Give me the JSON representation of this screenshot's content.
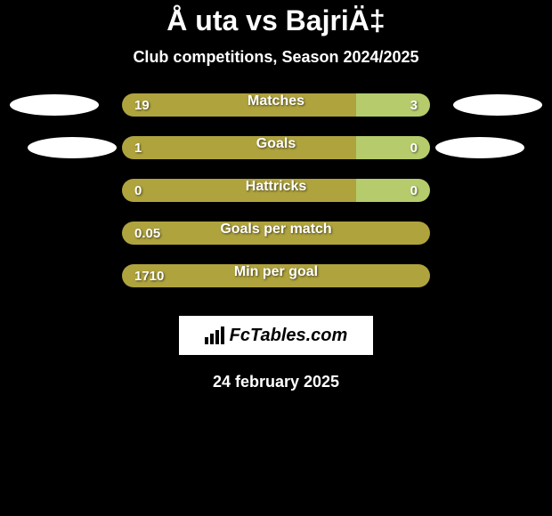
{
  "header": {
    "title": "Å uta vs BajriÄ‡",
    "subtitle": "Club competitions, Season 2024/2025"
  },
  "rows": [
    {
      "label": "Matches",
      "left_value": "19",
      "right_value": "3",
      "left_width_pct": 76,
      "right_width_pct": 24,
      "left_color": "#afa33e",
      "right_color": "#b6cc6c",
      "show_ellipses": true,
      "ellipse_indent": false
    },
    {
      "label": "Goals",
      "left_value": "1",
      "right_value": "0",
      "left_width_pct": 76,
      "right_width_pct": 24,
      "left_color": "#afa33e",
      "right_color": "#b6cc6c",
      "show_ellipses": true,
      "ellipse_indent": true
    },
    {
      "label": "Hattricks",
      "left_value": "0",
      "right_value": "0",
      "left_width_pct": 76,
      "right_width_pct": 24,
      "left_color": "#afa33e",
      "right_color": "#b6cc6c",
      "show_ellipses": false,
      "ellipse_indent": false
    },
    {
      "label": "Goals per match",
      "left_value": "0.05",
      "right_value": "",
      "left_width_pct": 100,
      "right_width_pct": 0,
      "left_color": "#afa33e",
      "right_color": "#b6cc6c",
      "show_ellipses": false,
      "ellipse_indent": false
    },
    {
      "label": "Min per goal",
      "left_value": "1710",
      "right_value": "",
      "left_width_pct": 100,
      "right_width_pct": 0,
      "left_color": "#afa33e",
      "right_color": "#b6cc6c",
      "show_ellipses": false,
      "ellipse_indent": false
    }
  ],
  "footer": {
    "logo_text": "FcTables.com",
    "date": "24 february 2025"
  },
  "style": {
    "background": "#000000",
    "text_color": "#ffffff",
    "logo_bg": "#ffffff",
    "logo_text_color": "#000000"
  }
}
